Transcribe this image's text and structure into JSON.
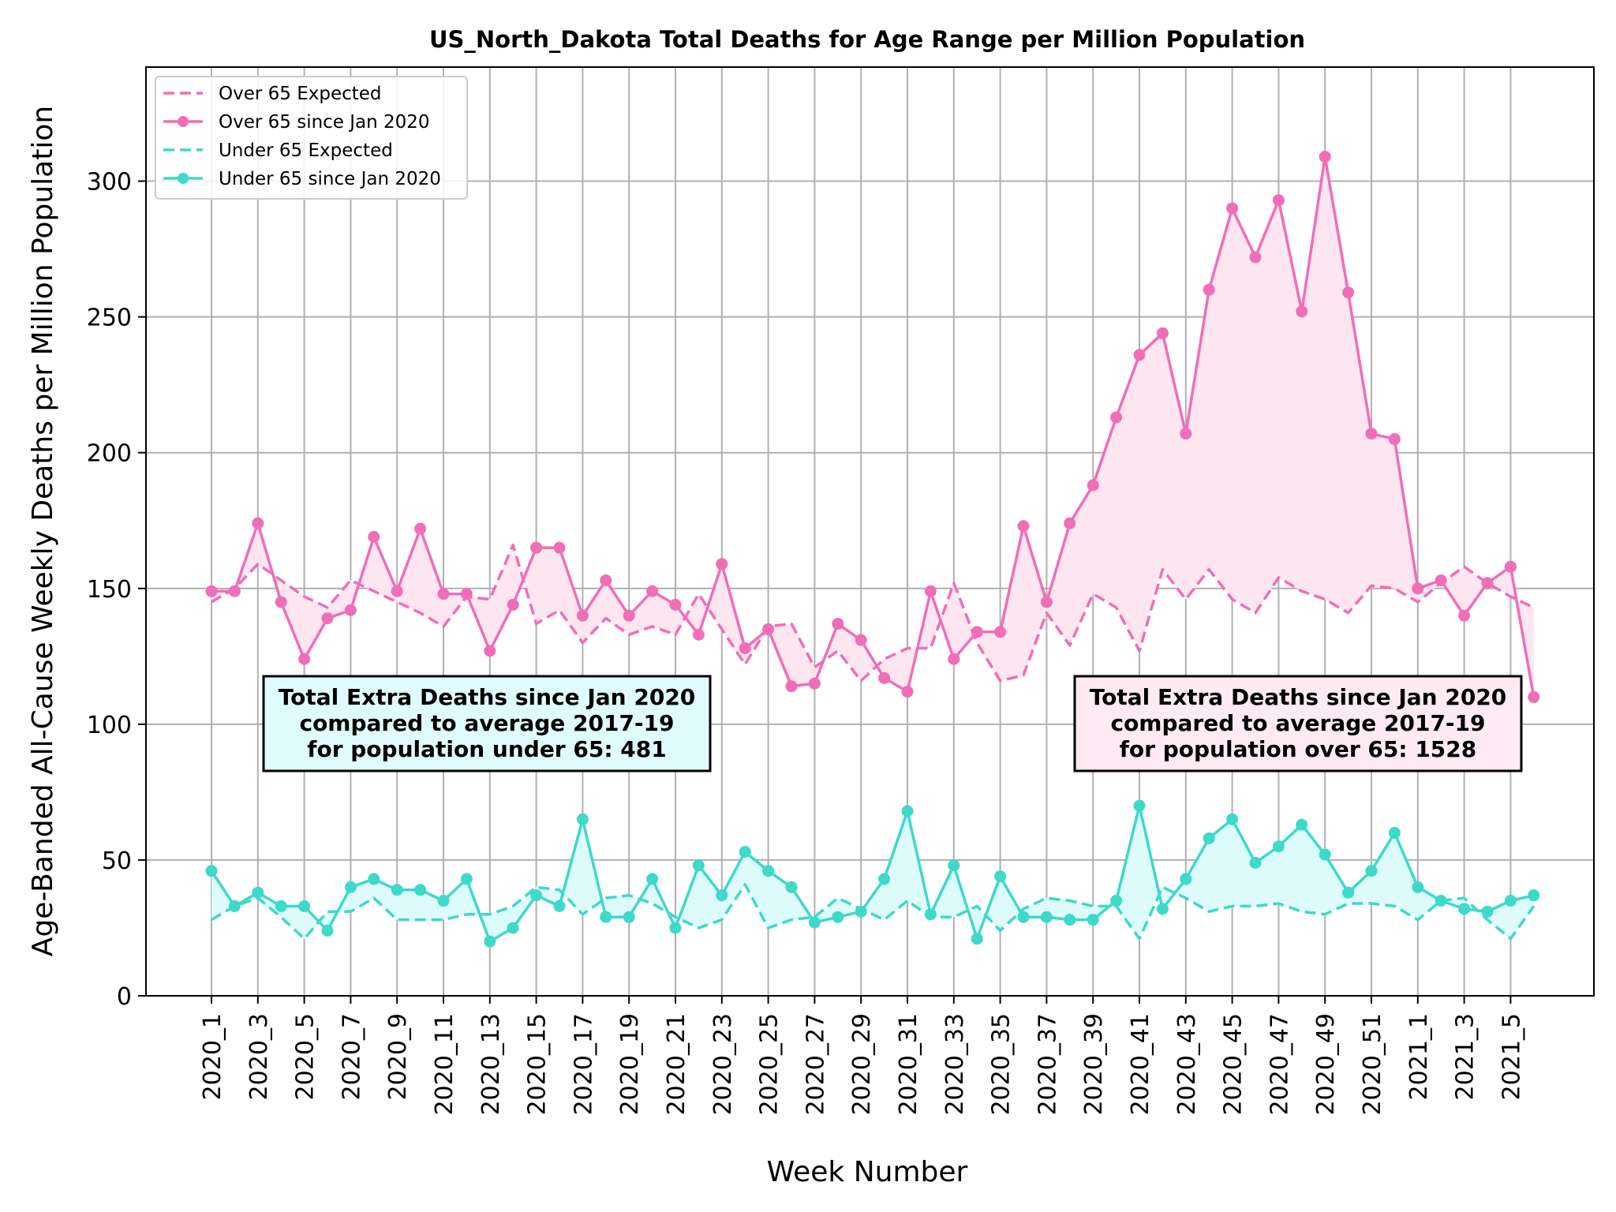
{
  "chart_data": {
    "type": "line",
    "title": "US_North_Dakota Total Deaths for Age Range per Million Population",
    "xlabel": "Week Number",
    "ylabel": "Age-Banded All-Cause Weekly Deaths per Million Population",
    "ylim": [
      0,
      342
    ],
    "yticks": [
      0,
      50,
      100,
      150,
      200,
      250,
      300
    ],
    "grid": true,
    "legend_position": "top-left",
    "categories": [
      "2020_1",
      "2020_2",
      "2020_3",
      "2020_4",
      "2020_5",
      "2020_6",
      "2020_7",
      "2020_8",
      "2020_9",
      "2020_10",
      "2020_11",
      "2020_12",
      "2020_13",
      "2020_14",
      "2020_15",
      "2020_16",
      "2020_17",
      "2020_18",
      "2020_19",
      "2020_20",
      "2020_21",
      "2020_22",
      "2020_23",
      "2020_24",
      "2020_25",
      "2020_26",
      "2020_27",
      "2020_28",
      "2020_29",
      "2020_30",
      "2020_31",
      "2020_32",
      "2020_33",
      "2020_34",
      "2020_35",
      "2020_36",
      "2020_37",
      "2020_38",
      "2020_39",
      "2020_40",
      "2020_41",
      "2020_42",
      "2020_43",
      "2020_44",
      "2020_45",
      "2020_46",
      "2020_47",
      "2020_48",
      "2020_49",
      "2020_50",
      "2020_51",
      "2020_52",
      "2021_1",
      "2021_2",
      "2021_3",
      "2021_4",
      "2021_5",
      "2021_6"
    ],
    "tick_labels": [
      "2020_1",
      "2020_3",
      "2020_5",
      "2020_7",
      "2020_9",
      "2020_11",
      "2020_13",
      "2020_15",
      "2020_17",
      "2020_19",
      "2020_21",
      "2020_23",
      "2020_25",
      "2020_27",
      "2020_29",
      "2020_31",
      "2020_33",
      "2020_35",
      "2020_37",
      "2020_39",
      "2020_41",
      "2020_43",
      "2020_45",
      "2020_47",
      "2020_49",
      "2020_51",
      "2021_1",
      "2021_3",
      "2021_5"
    ],
    "series": [
      {
        "name": "Over 65 Expected",
        "style": "dashed",
        "color": "#f06eb7",
        "values": [
          145,
          150,
          159,
          153,
          147,
          143,
          153,
          149,
          145,
          141,
          136,
          147,
          146,
          166,
          137,
          142,
          130,
          139,
          133,
          136,
          133,
          148,
          135,
          122,
          136,
          137,
          121,
          127,
          116,
          124,
          128,
          128,
          152,
          130,
          116,
          118,
          141,
          129,
          148,
          143,
          127,
          157,
          146,
          157,
          146,
          141,
          154,
          149,
          146,
          141,
          151,
          150,
          145,
          152,
          158,
          152,
          147,
          143
        ]
      },
      {
        "name": "Over 65 since Jan 2020",
        "style": "solid-marker",
        "color": "#f06eb7",
        "values": [
          149,
          149,
          174,
          145,
          124,
          139,
          142,
          169,
          149,
          172,
          148,
          148,
          127,
          144,
          165,
          165,
          140,
          153,
          140,
          149,
          144,
          133,
          159,
          128,
          135,
          114,
          115,
          137,
          131,
          117,
          112,
          149,
          124,
          134,
          134,
          173,
          145,
          174,
          188,
          213,
          236,
          244,
          207,
          260,
          290,
          272,
          293,
          252,
          309,
          259,
          207,
          205,
          150,
          153,
          140,
          152,
          158,
          110
        ]
      },
      {
        "name": "Under 65 Expected",
        "style": "dashed",
        "color": "#3dd9c9",
        "values": [
          28,
          33,
          36,
          29,
          21,
          31,
          31,
          36,
          28,
          28,
          28,
          30,
          30,
          33,
          40,
          39,
          30,
          36,
          37,
          34,
          29,
          25,
          28,
          41,
          25,
          28,
          29,
          36,
          32,
          28,
          35,
          29,
          29,
          33,
          24,
          32,
          36,
          35,
          33,
          33,
          21,
          40,
          36,
          31,
          33,
          33,
          34,
          31,
          30,
          34,
          34,
          33,
          28,
          35,
          36,
          28,
          21,
          33
        ]
      },
      {
        "name": "Under 65 since Jan 2020",
        "style": "solid-marker",
        "color": "#3dd9c9",
        "values": [
          46,
          33,
          38,
          33,
          33,
          24,
          40,
          43,
          39,
          39,
          35,
          43,
          20,
          25,
          37,
          33,
          65,
          29,
          29,
          43,
          25,
          48,
          37,
          53,
          46,
          40,
          27,
          29,
          31,
          43,
          68,
          30,
          48,
          21,
          44,
          29,
          29,
          28,
          28,
          35,
          70,
          32,
          43,
          58,
          65,
          49,
          55,
          63,
          52,
          38,
          46,
          60,
          40,
          35,
          32,
          31,
          35,
          37
        ]
      }
    ],
    "annotations": [
      {
        "name": "under-65-extra-deaths",
        "lines": [
          "Total Extra Deaths since Jan 2020",
          "compared to average 2017-19",
          "for population under 65: 481"
        ],
        "background": "#e0fbfc"
      },
      {
        "name": "over-65-extra-deaths",
        "lines": [
          "Total Extra Deaths since Jan 2020",
          "compared to average 2017-19",
          "for population over 65: 1528"
        ],
        "background": "#fdeaf2"
      }
    ]
  },
  "colors": {
    "over65": "#f06eb7",
    "over65_fill": "#fde6ef",
    "under65": "#3dd9c9",
    "under65_fill": "#defbfb"
  }
}
